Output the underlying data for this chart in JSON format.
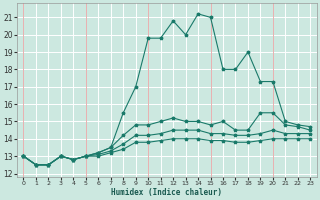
{
  "xlabel": "Humidex (Indice chaleur)",
  "bg_color": "#cce8e0",
  "grid_color": "#ffffff",
  "pink_grid_color": "#e8b0b0",
  "line_color": "#1a7a6a",
  "xlim": [
    -0.5,
    23.5
  ],
  "ylim": [
    11.8,
    21.8
  ],
  "yticks": [
    12,
    13,
    14,
    15,
    16,
    17,
    18,
    19,
    20,
    21
  ],
  "xticks": [
    0,
    1,
    2,
    3,
    4,
    5,
    6,
    7,
    8,
    9,
    10,
    11,
    12,
    13,
    14,
    15,
    16,
    17,
    18,
    19,
    20,
    21,
    22,
    23
  ],
  "pink_vlines": [
    0,
    5,
    10,
    15,
    20
  ],
  "lines": [
    {
      "x": [
        0,
        1,
        2,
        3,
        4,
        5,
        6,
        7,
        8,
        9,
        10,
        11,
        12,
        13,
        14,
        15,
        16,
        17,
        18,
        19,
        20,
        21,
        22,
        23
      ],
      "y": [
        13.0,
        12.5,
        12.5,
        13.0,
        12.8,
        13.0,
        13.2,
        13.5,
        15.5,
        17.0,
        19.8,
        19.8,
        20.8,
        20.0,
        21.2,
        21.0,
        18.0,
        18.0,
        19.0,
        17.3,
        17.3,
        15.0,
        14.8,
        14.7
      ]
    },
    {
      "x": [
        0,
        1,
        2,
        3,
        4,
        5,
        6,
        7,
        8,
        9,
        10,
        11,
        12,
        13,
        14,
        15,
        16,
        17,
        18,
        19,
        20,
        21,
        22,
        23
      ],
      "y": [
        13.0,
        12.5,
        12.5,
        13.0,
        12.8,
        13.0,
        13.2,
        13.5,
        14.2,
        14.8,
        14.8,
        15.0,
        15.2,
        15.0,
        15.0,
        14.8,
        15.0,
        14.5,
        14.5,
        15.5,
        15.5,
        14.8,
        14.7,
        14.5
      ]
    },
    {
      "x": [
        0,
        1,
        2,
        3,
        4,
        5,
        6,
        7,
        8,
        9,
        10,
        11,
        12,
        13,
        14,
        15,
        16,
        17,
        18,
        19,
        20,
        21,
        22,
        23
      ],
      "y": [
        13.0,
        12.5,
        12.5,
        13.0,
        12.8,
        13.0,
        13.1,
        13.3,
        13.7,
        14.2,
        14.2,
        14.3,
        14.5,
        14.5,
        14.5,
        14.3,
        14.3,
        14.2,
        14.2,
        14.3,
        14.5,
        14.3,
        14.3,
        14.3
      ]
    },
    {
      "x": [
        0,
        1,
        2,
        3,
        4,
        5,
        6,
        7,
        8,
        9,
        10,
        11,
        12,
        13,
        14,
        15,
        16,
        17,
        18,
        19,
        20,
        21,
        22,
        23
      ],
      "y": [
        13.0,
        12.5,
        12.5,
        13.0,
        12.8,
        13.0,
        13.0,
        13.2,
        13.4,
        13.8,
        13.8,
        13.9,
        14.0,
        14.0,
        14.0,
        13.9,
        13.9,
        13.8,
        13.8,
        13.9,
        14.0,
        14.0,
        14.0,
        14.0
      ]
    }
  ]
}
